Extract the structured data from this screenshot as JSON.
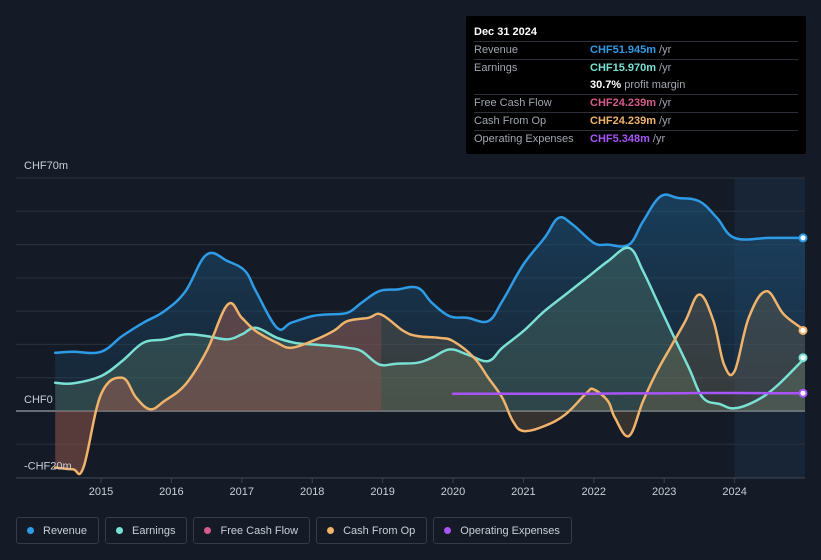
{
  "tooltip": {
    "date": "Dec 31 2024",
    "rows": [
      {
        "label": "Revenue",
        "value": "CHF51.945m",
        "unit": "/yr",
        "color": "#2e9be6"
      },
      {
        "label": "Earnings",
        "value": "CHF15.970m",
        "unit": "/yr",
        "color": "#7ae0d3"
      },
      {
        "label": "",
        "value": "30.7%",
        "unit": "profit margin",
        "color": "#ffffff"
      },
      {
        "label": "Free Cash Flow",
        "value": "CHF24.239m",
        "unit": "/yr",
        "color": "#d45c8d"
      },
      {
        "label": "Cash From Op",
        "value": "CHF24.239m",
        "unit": "/yr",
        "color": "#f0b36b"
      },
      {
        "label": "Operating Expenses",
        "value": "CHF5.348m",
        "unit": "/yr",
        "color": "#a855f7"
      }
    ]
  },
  "legend": [
    {
      "label": "Revenue",
      "color": "#2e9be6"
    },
    {
      "label": "Earnings",
      "color": "#7ae0d3"
    },
    {
      "label": "Free Cash Flow",
      "color": "#d45c8d"
    },
    {
      "label": "Cash From Op",
      "color": "#f0b36b"
    },
    {
      "label": "Operating Expenses",
      "color": "#a855f7"
    }
  ],
  "chart_data": {
    "type": "area",
    "title": "",
    "xlabel": "",
    "ylabel": "",
    "ylim": [
      -20,
      70
    ],
    "y_tick_labels": [
      "CHF70m",
      "CHF0",
      "-CHF20m"
    ],
    "x_ticks": [
      2015,
      2016,
      2017,
      2018,
      2019,
      2020,
      2021,
      2022,
      2023,
      2024
    ],
    "x_range": [
      2014.3,
      2025.0
    ],
    "highlight_from": 2024.0,
    "series": [
      {
        "name": "Revenue",
        "color": "#2e9be6",
        "x": [
          2014.35,
          2014.6,
          2015.0,
          2015.3,
          2015.6,
          2015.9,
          2016.2,
          2016.5,
          2016.8,
          2017.05,
          2017.2,
          2017.5,
          2017.7,
          2018.0,
          2018.2,
          2018.5,
          2018.7,
          2018.95,
          2019.2,
          2019.5,
          2019.7,
          2019.95,
          2020.2,
          2020.5,
          2020.7,
          2021.0,
          2021.3,
          2021.5,
          2021.7,
          2022.0,
          2022.2,
          2022.5,
          2022.7,
          2022.95,
          2023.2,
          2023.5,
          2023.75,
          2024.0,
          2024.5,
          2025.0
        ],
        "y": [
          17.5,
          17.8,
          17.8,
          22.5,
          26.5,
          30,
          36,
          47,
          45,
          42,
          36,
          25,
          26.5,
          28.5,
          29,
          29.5,
          32.5,
          36,
          36.5,
          37,
          32.5,
          28.5,
          28,
          27,
          33,
          44,
          52,
          58,
          56,
          50.5,
          50,
          50,
          57,
          64.5,
          64,
          63,
          58,
          52,
          52,
          52
        ]
      },
      {
        "name": "Earnings",
        "color": "#7ae0d3",
        "x": [
          2014.35,
          2014.6,
          2015.0,
          2015.3,
          2015.6,
          2015.9,
          2016.2,
          2016.5,
          2016.8,
          2017.0,
          2017.2,
          2017.5,
          2017.75,
          2018.0,
          2018.3,
          2018.5,
          2018.7,
          2018.95,
          2019.2,
          2019.5,
          2019.7,
          2019.95,
          2020.2,
          2020.5,
          2020.7,
          2021.0,
          2021.3,
          2021.6,
          2021.9,
          2022.2,
          2022.5,
          2022.7,
          2022.9,
          2023.1,
          2023.35,
          2023.55,
          2023.8,
          2024.0,
          2024.3,
          2024.6,
          2025.0
        ],
        "y": [
          8.5,
          8.3,
          10.5,
          15,
          20.5,
          21.5,
          23,
          22.5,
          21.5,
          23,
          25,
          22,
          20.5,
          20,
          19.5,
          19,
          18,
          14,
          14.2,
          14.5,
          16,
          18.5,
          17,
          15,
          19,
          24,
          30,
          35,
          40,
          45,
          49,
          42,
          33,
          24,
          13,
          4,
          2,
          0.8,
          3,
          7.5,
          16
        ]
      },
      {
        "name": "Free Cash Flow",
        "color": "#d45c8d",
        "x": [
          2014.35,
          2014.6,
          2014.75,
          2015.0,
          2015.3,
          2015.5,
          2015.7,
          2015.9,
          2016.2,
          2016.5,
          2016.8,
          2017.0,
          2017.2,
          2017.5,
          2017.7,
          2018.0,
          2018.3,
          2018.5,
          2018.8,
          2018.98
        ],
        "y": [
          -17,
          -17.5,
          -17,
          5,
          10,
          4,
          0.5,
          3,
          8,
          18,
          32,
          28,
          24,
          20.5,
          19,
          21,
          24,
          27,
          28,
          29
        ]
      },
      {
        "name": "Cash From Op",
        "color": "#f0b36b",
        "x": [
          2014.35,
          2014.6,
          2014.75,
          2015.0,
          2015.3,
          2015.5,
          2015.7,
          2015.9,
          2016.2,
          2016.5,
          2016.8,
          2017.0,
          2017.2,
          2017.5,
          2017.7,
          2018.0,
          2018.3,
          2018.5,
          2018.8,
          2018.98,
          2019.3,
          2019.5,
          2019.8,
          2020.0,
          2020.3,
          2020.5,
          2020.7,
          2020.85,
          2021.0,
          2021.3,
          2021.6,
          2021.9,
          2022.0,
          2022.2,
          2022.3,
          2022.5,
          2022.7,
          2022.9,
          2023.1,
          2023.3,
          2023.5,
          2023.7,
          2023.85,
          2024.0,
          2024.2,
          2024.45,
          2024.7,
          2025.0
        ],
        "y": [
          -17,
          -17.5,
          -17,
          5,
          10,
          4,
          0.5,
          3,
          8,
          18,
          32,
          28,
          24,
          20.5,
          19,
          21,
          24,
          27,
          28,
          29,
          24,
          22.5,
          22,
          21,
          16,
          10,
          4,
          -3,
          -6,
          -4.5,
          -1,
          5.5,
          6.5,
          3,
          -2,
          -7.5,
          3,
          12,
          19.5,
          27,
          35,
          27,
          14,
          12,
          28,
          36,
          29,
          24.2
        ]
      },
      {
        "name": "Operating Expenses",
        "color": "#a855f7",
        "x": [
          2020.0,
          2020.5,
          2021.0,
          2021.5,
          2022.0,
          2022.5,
          2023.0,
          2023.5,
          2024.0,
          2024.5,
          2025.0
        ],
        "y": [
          5.2,
          5.2,
          5.2,
          5.2,
          5.2,
          5.3,
          5.3,
          5.4,
          5.4,
          5.35,
          5.35
        ]
      }
    ]
  }
}
